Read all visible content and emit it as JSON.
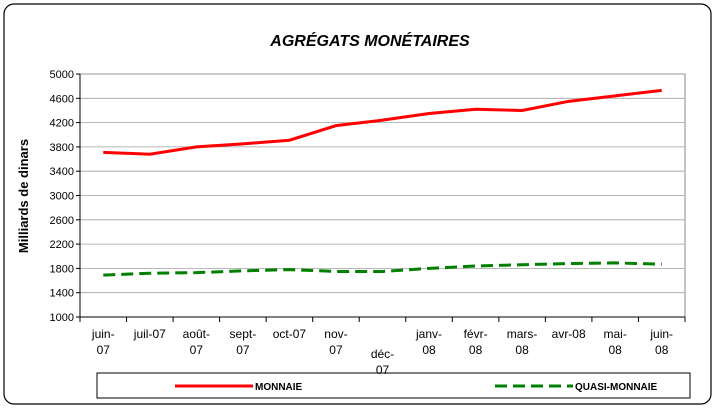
{
  "chart_data": {
    "type": "line",
    "title": "AGRÉGATS MONÉTAIRES",
    "y_label": "Milliards de dinars",
    "categories": [
      "juin-07",
      "juil-07",
      "août-07",
      "sept-07",
      "oct-07",
      "nov-07",
      "déc-07",
      "janv-08",
      "févr-08",
      "mars-08",
      "avr-08",
      "mai-08",
      "juin-08"
    ],
    "series": [
      {
        "name": "MONNAIE",
        "color": "#ff0000",
        "dash": false,
        "values": [
          3710,
          3680,
          3800,
          3850,
          3910,
          4150,
          4240,
          4350,
          4420,
          4400,
          4550,
          4640,
          4730
        ]
      },
      {
        "name": "QUASI-MONNAIE",
        "color": "#008000",
        "dash": true,
        "values": [
          1690,
          1720,
          1730,
          1760,
          1780,
          1750,
          1750,
          1800,
          1840,
          1860,
          1880,
          1890,
          1870
        ]
      }
    ],
    "ylim": [
      1000,
      5000
    ],
    "yticks": [
      1000,
      1400,
      1800,
      2200,
      2600,
      3000,
      3400,
      3800,
      4200,
      4600,
      5000
    ],
    "grid": true
  }
}
